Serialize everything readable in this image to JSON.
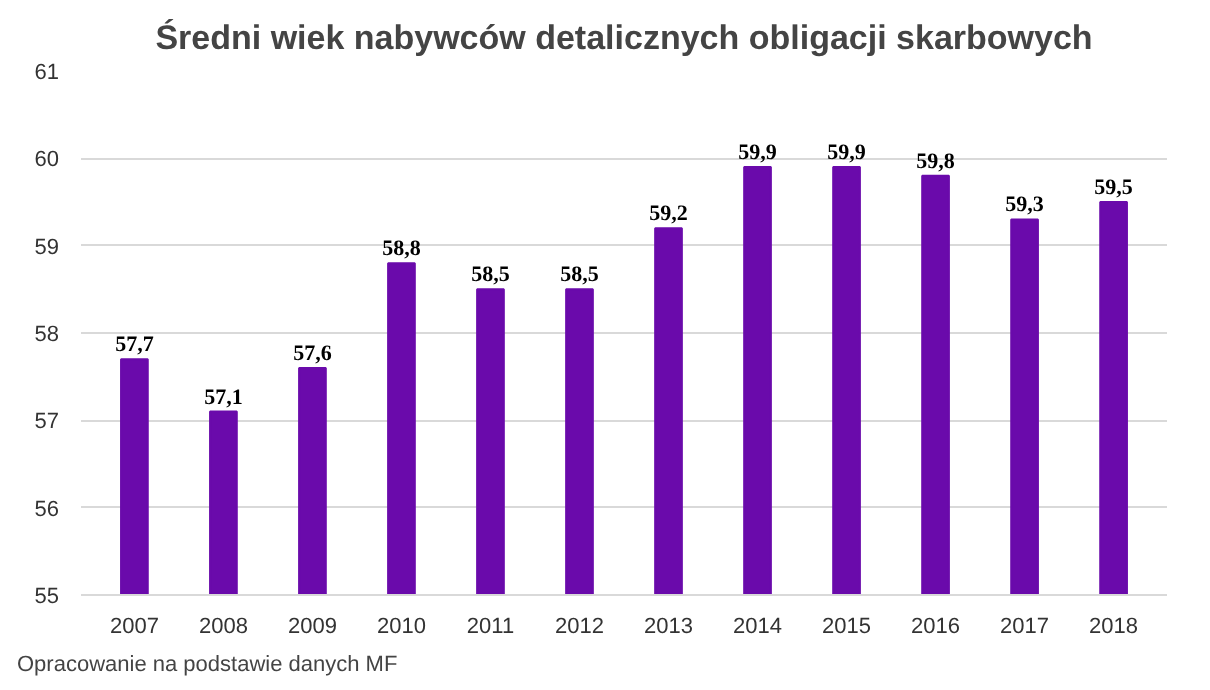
{
  "chart_data": {
    "type": "bar",
    "title": "Średni wiek nabywców detalicznych obligacji skarbowych",
    "categories": [
      "2007",
      "2008",
      "2009",
      "2010",
      "2011",
      "2012",
      "2013",
      "2014",
      "2015",
      "2016",
      "2017",
      "2018"
    ],
    "values": [
      57.7,
      57.1,
      57.6,
      58.8,
      58.5,
      58.5,
      59.2,
      59.9,
      59.9,
      59.8,
      59.3,
      59.5
    ],
    "value_labels": [
      "57,7",
      "57,1",
      "57,6",
      "58,8",
      "58,5",
      "58,5",
      "59,2",
      "59,9",
      "59,9",
      "59,8",
      "59,3",
      "59,5"
    ],
    "color": "#6a0aab",
    "ylim": [
      55,
      61
    ],
    "yticks": [
      55,
      56,
      57,
      58,
      59,
      60,
      61
    ],
    "grid": "y",
    "annotations": [
      "Opracowanie na podstawie danych MF"
    ]
  }
}
